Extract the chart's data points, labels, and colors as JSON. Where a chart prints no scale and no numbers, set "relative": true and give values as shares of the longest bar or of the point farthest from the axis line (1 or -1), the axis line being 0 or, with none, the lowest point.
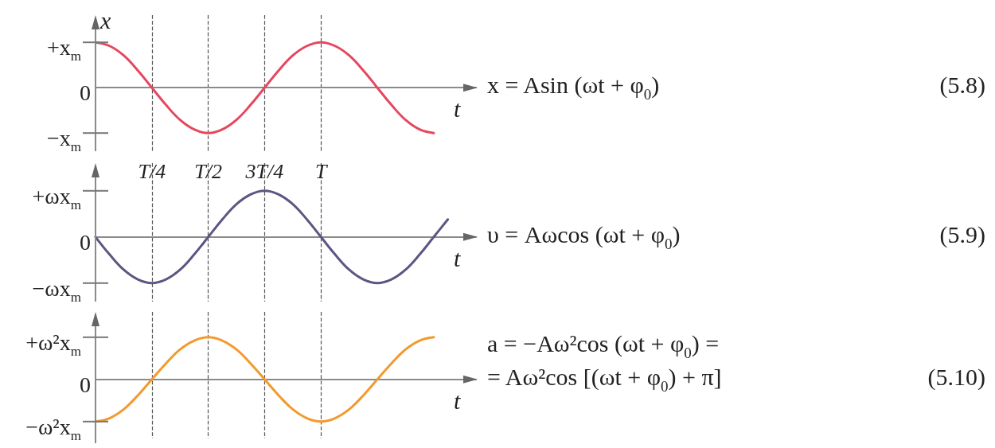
{
  "chart_data": [
    {
      "type": "line",
      "relative": true,
      "xlabel": "t",
      "ylabel": "x",
      "grid": "x",
      "marker": "none",
      "line_style": "solid",
      "categories": [
        null,
        null,
        null,
        null,
        "T/4",
        null,
        null,
        null,
        "T/2",
        null,
        null,
        null,
        "3T/4",
        null,
        null,
        null,
        "T",
        null,
        null,
        null,
        null,
        null,
        null,
        null,
        null,
        null,
        null,
        null
      ],
      "series": [
        {
          "color": "#e5475f",
          "values": [
            1,
            0.92,
            0.71,
            0.38,
            0,
            -0.38,
            -0.71,
            -0.92,
            -1,
            -0.92,
            -0.71,
            -0.38,
            0,
            0.38,
            0.71,
            0.92,
            1,
            0.92,
            0.71,
            0.38,
            0,
            -0.38,
            -0.71,
            -0.92,
            -1,
            null,
            null,
            null
          ]
        }
      ],
      "annotations": [
        "+x$_{m}$",
        "0",
        "−x$_{m}$",
        "x = Asin (ωt + φ$_{0}$)",
        "(5.8)"
      ]
    },
    {
      "type": "line",
      "relative": true,
      "xlabel": "t",
      "grid": "x",
      "marker": "none",
      "line_style": "solid",
      "categories": [
        null,
        null,
        null,
        null,
        null,
        null,
        null,
        null,
        null,
        null,
        null,
        null,
        null,
        null,
        null,
        null,
        null,
        null,
        null,
        null,
        null,
        null,
        null,
        null,
        null,
        null,
        null,
        null
      ],
      "series": [
        {
          "color": "#5d5682",
          "values": [
            0,
            -0.38,
            -0.71,
            -0.92,
            -1,
            -0.92,
            -0.71,
            -0.38,
            0,
            0.38,
            0.71,
            0.92,
            1,
            0.92,
            0.71,
            0.38,
            0,
            -0.38,
            -0.71,
            -0.92,
            -1,
            -0.92,
            -0.71,
            -0.38,
            0,
            0.38,
            null,
            null
          ]
        }
      ],
      "annotations": [
        "+ωx$_{m}$",
        "0",
        "−ωx$_{m}$",
        "υ = Aωcos (ωt + φ$_{0}$)",
        "(5.9)"
      ]
    },
    {
      "type": "line",
      "relative": true,
      "xlabel": "t",
      "grid": "x",
      "marker": "none",
      "line_style": "solid",
      "categories": [
        null,
        null,
        null,
        null,
        null,
        null,
        null,
        null,
        null,
        null,
        null,
        null,
        null,
        null,
        null,
        null,
        null,
        null,
        null,
        null,
        null,
        null,
        null,
        null,
        null,
        null,
        null,
        null
      ],
      "series": [
        {
          "color": "#f39a2e",
          "values": [
            -1,
            -0.92,
            -0.71,
            -0.38,
            0,
            0.38,
            0.71,
            0.92,
            1,
            0.92,
            0.71,
            0.38,
            0,
            -0.38,
            -0.71,
            -0.92,
            -1,
            -0.92,
            -0.71,
            -0.38,
            0,
            0.38,
            0.71,
            0.92,
            1,
            null,
            null,
            null
          ]
        }
      ],
      "annotations": [
        "+ω²x$_{m}$",
        "0",
        "−ω²x$_{m}$",
        "a = −Aω²cos (ωt + φ$_{0}$) =",
        "= Aω²cos [(ωt + φ$_{0}$) + π]",
        "(5.10)"
      ]
    }
  ]
}
